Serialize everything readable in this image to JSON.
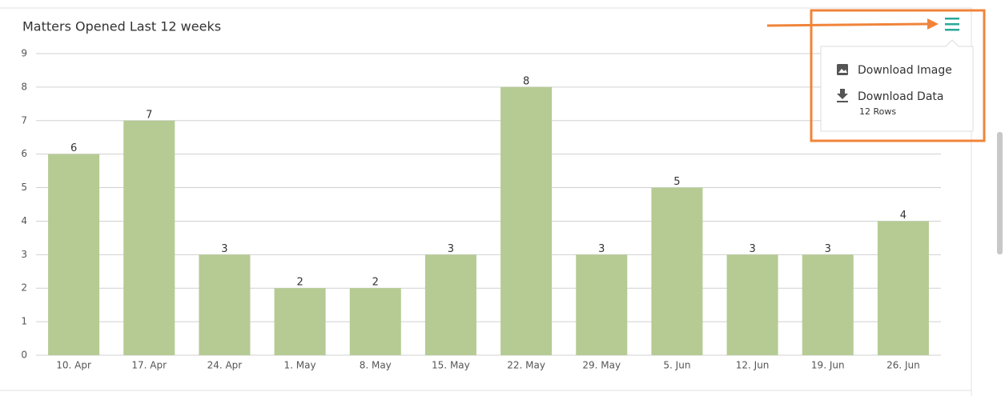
{
  "chart_data": {
    "type": "bar",
    "title": "Matters Opened Last 12 weeks",
    "categories": [
      "10. Apr",
      "17. Apr",
      "24. Apr",
      "1. May",
      "8. May",
      "15. May",
      "22. May",
      "29. May",
      "5. Jun",
      "12. Jun",
      "19. Jun",
      "26. Jun"
    ],
    "values": [
      6,
      7,
      3,
      2,
      2,
      3,
      8,
      3,
      5,
      3,
      3,
      4
    ],
    "color": "#b5cb93",
    "ylim": [
      0,
      9
    ],
    "yticks": [
      0,
      1,
      2,
      3,
      4,
      5,
      6,
      7,
      8,
      9
    ],
    "grid": true
  },
  "menu": {
    "items": [
      {
        "label": "Download Image"
      },
      {
        "label": "Download Data",
        "detail": "12 Rows"
      }
    ]
  }
}
